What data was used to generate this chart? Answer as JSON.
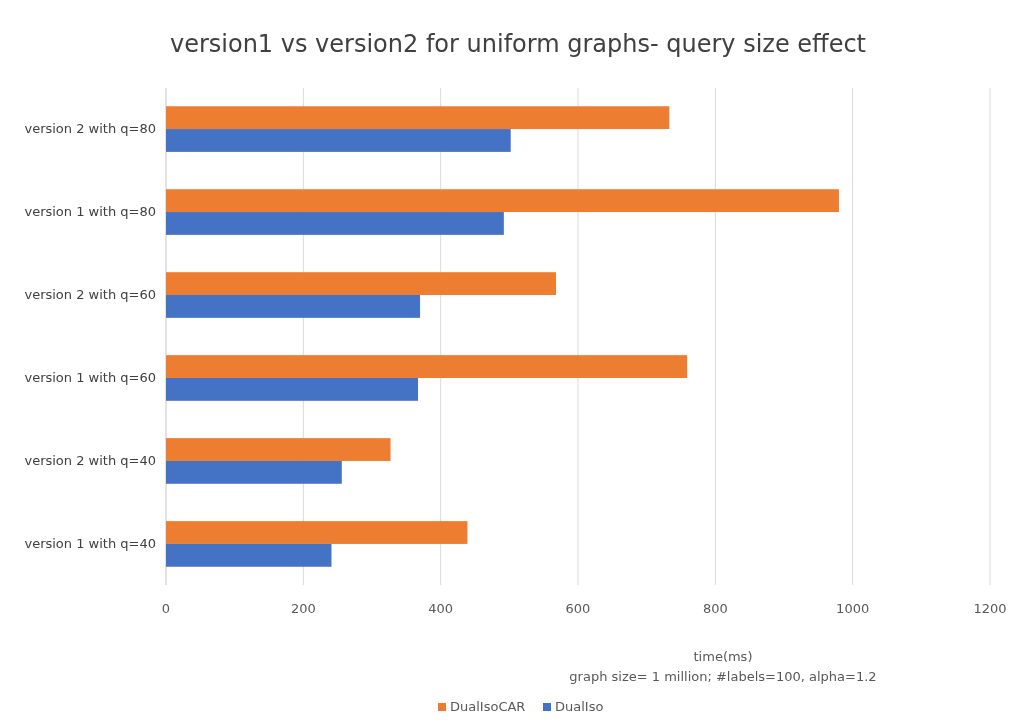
{
  "chart_data": {
    "type": "bar",
    "orientation": "horizontal",
    "title": "version1 vs version2 for uniform graphs- query size effect",
    "xlabel": "time(ms)",
    "annotations": [
      "graph size= 1 million; #labels=100, alpha=1.2"
    ],
    "categories": [
      "version 2 with q=80",
      "version 1 with q=80",
      "version 2 with q=60",
      "version 1 with q=60",
      "version 2 with q=40",
      "version 1 with q=40"
    ],
    "series": [
      {
        "name": "DualIsoCAR",
        "color": "#ed7d31",
        "values": [
          733,
          980,
          568,
          759,
          327,
          439
        ]
      },
      {
        "name": "DualIso",
        "color": "#4472c4",
        "values": [
          502,
          492,
          370,
          367,
          256,
          241
        ]
      }
    ],
    "xlim": [
      0,
      1200
    ],
    "xticks": [
      0,
      200,
      400,
      600,
      800,
      1000,
      1200
    ],
    "grid": "x",
    "legend": "bottom"
  }
}
